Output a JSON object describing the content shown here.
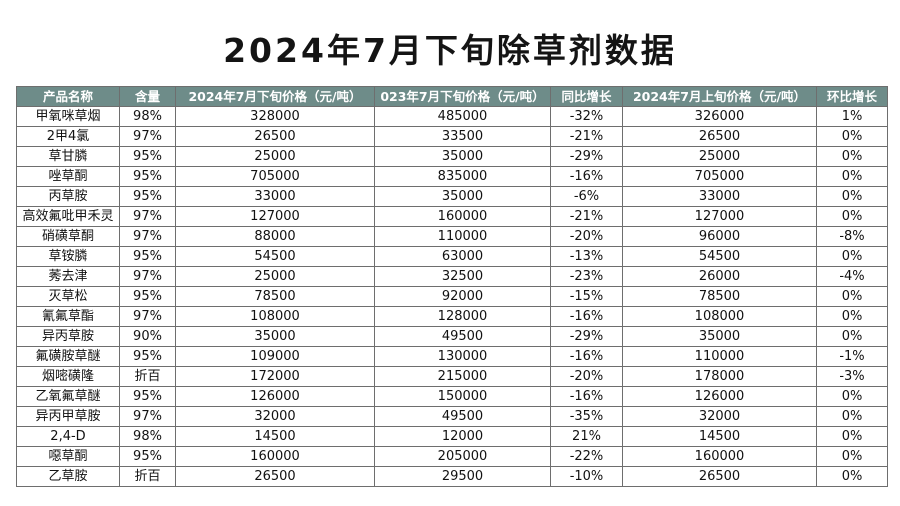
{
  "title": "2024年7月下旬除草剂数据",
  "table": {
    "headers": [
      "产品名称",
      "含量",
      "2024年7月下旬价格（元/吨）",
      "023年7月下旬价格（元/吨）",
      "同比增长",
      "2024年7月上旬价格（元/吨）",
      "环比增长"
    ],
    "rows": [
      [
        "甲氧咪草烟",
        "98%",
        "328000",
        "485000",
        "-32%",
        "326000",
        "1%"
      ],
      [
        "2甲4氯",
        "97%",
        "26500",
        "33500",
        "-21%",
        "26500",
        "0%"
      ],
      [
        "草甘膦",
        "95%",
        "25000",
        "35000",
        "-29%",
        "25000",
        "0%"
      ],
      [
        "唑草酮",
        "95%",
        "705000",
        "835000",
        "-16%",
        "705000",
        "0%"
      ],
      [
        "丙草胺",
        "95%",
        "33000",
        "35000",
        "-6%",
        "33000",
        "0%"
      ],
      [
        "高效氟吡甲禾灵",
        "97%",
        "127000",
        "160000",
        "-21%",
        "127000",
        "0%"
      ],
      [
        "硝磺草酮",
        "97%",
        "88000",
        "110000",
        "-20%",
        "96000",
        "-8%"
      ],
      [
        "草铵膦",
        "95%",
        "54500",
        "63000",
        "-13%",
        "54500",
        "0%"
      ],
      [
        "莠去津",
        "97%",
        "25000",
        "32500",
        "-23%",
        "26000",
        "-4%"
      ],
      [
        "灭草松",
        "95%",
        "78500",
        "92000",
        "-15%",
        "78500",
        "0%"
      ],
      [
        "氰氟草酯",
        "97%",
        "108000",
        "128000",
        "-16%",
        "108000",
        "0%"
      ],
      [
        "异丙草胺",
        "90%",
        "35000",
        "49500",
        "-29%",
        "35000",
        "0%"
      ],
      [
        "氟磺胺草醚",
        "95%",
        "109000",
        "130000",
        "-16%",
        "110000",
        "-1%"
      ],
      [
        "烟嘧磺隆",
        "折百",
        "172000",
        "215000",
        "-20%",
        "178000",
        "-3%"
      ],
      [
        "乙氧氟草醚",
        "95%",
        "126000",
        "150000",
        "-16%",
        "126000",
        "0%"
      ],
      [
        "异丙甲草胺",
        "97%",
        "32000",
        "49500",
        "-35%",
        "32000",
        "0%"
      ],
      [
        "2,4-D",
        "98%",
        "14500",
        "12000",
        "21%",
        "14500",
        "0%"
      ],
      [
        "噁草酮",
        "95%",
        "160000",
        "205000",
        "-22%",
        "160000",
        "0%"
      ],
      [
        "乙草胺",
        "折百",
        "26500",
        "29500",
        "-10%",
        "26500",
        "0%"
      ]
    ]
  }
}
